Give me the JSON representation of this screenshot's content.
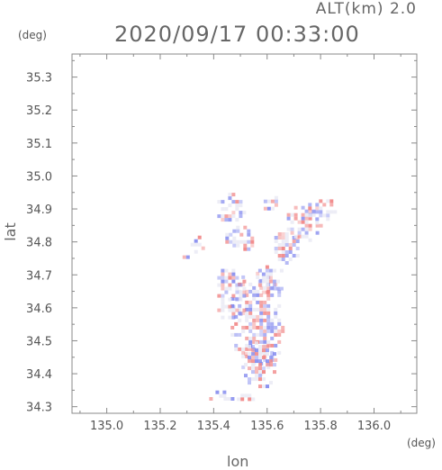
{
  "header": {
    "alt_label": "ALT(km) 2.0",
    "datetime": "2020/09/17 00:33:00"
  },
  "chart_data": {
    "type": "heatmap",
    "title": "2020/09/17 00:33:00",
    "xlabel": "lon",
    "ylabel": "lat",
    "x_unit": "(deg)",
    "y_unit": "(deg)",
    "xlim": [
      134.87,
      136.16
    ],
    "ylim": [
      34.28,
      35.37
    ],
    "x_ticks": [
      135.0,
      135.2,
      135.4,
      135.6,
      135.8,
      136.0
    ],
    "x_tick_labels": [
      "135.0",
      "135.2",
      "135.4",
      "135.6",
      "135.8",
      "136.0"
    ],
    "y_ticks": [
      34.3,
      34.4,
      34.5,
      34.6,
      34.7,
      34.8,
      34.9,
      35.0,
      35.1,
      35.2,
      35.3
    ],
    "y_tick_labels": [
      "34.3",
      "34.4",
      "34.5",
      "34.6",
      "34.7",
      "34.8",
      "34.9",
      "35.0",
      "35.1",
      "35.2",
      "35.3"
    ],
    "grid": false,
    "colors": {
      "positive": "#f08080",
      "negative": "#7f86ee",
      "neutral": "#e8e8f4"
    },
    "regions": [
      {
        "lon": [
          135.45,
          135.66
        ],
        "lat": [
          34.4,
          34.72
        ]
      },
      {
        "lon": [
          135.5,
          135.64
        ],
        "lat": [
          34.36,
          34.52
        ]
      },
      {
        "lon": [
          135.4,
          135.52
        ],
        "lat": [
          34.56,
          34.74
        ]
      },
      {
        "lon": [
          135.54,
          135.66
        ],
        "lat": [
          34.64,
          34.74
        ]
      },
      {
        "lon": [
          135.6,
          135.72
        ],
        "lat": [
          34.74,
          34.84
        ]
      },
      {
        "lon": [
          135.66,
          135.8
        ],
        "lat": [
          34.8,
          34.92
        ]
      },
      {
        "lon": [
          135.74,
          135.86
        ],
        "lat": [
          34.86,
          34.94
        ]
      },
      {
        "lon": [
          135.4,
          135.52
        ],
        "lat": [
          34.86,
          34.96
        ]
      },
      {
        "lon": [
          135.43,
          135.56
        ],
        "lat": [
          34.77,
          34.86
        ]
      },
      {
        "lon": [
          135.56,
          135.64
        ],
        "lat": [
          34.9,
          34.95
        ]
      },
      {
        "lon": [
          135.3,
          135.36
        ],
        "lat": [
          34.77,
          34.83
        ]
      },
      {
        "lon": [
          135.27,
          135.31
        ],
        "lat": [
          34.75,
          34.77
        ]
      },
      {
        "lon": [
          135.46,
          135.56
        ],
        "lat": [
          34.32,
          34.35
        ]
      },
      {
        "lon": [
          135.38,
          135.46
        ],
        "lat": [
          34.33,
          34.36
        ]
      },
      {
        "lon": [
          135.37,
          135.5
        ],
        "lat": [
          34.32,
          34.34
        ]
      }
    ]
  }
}
